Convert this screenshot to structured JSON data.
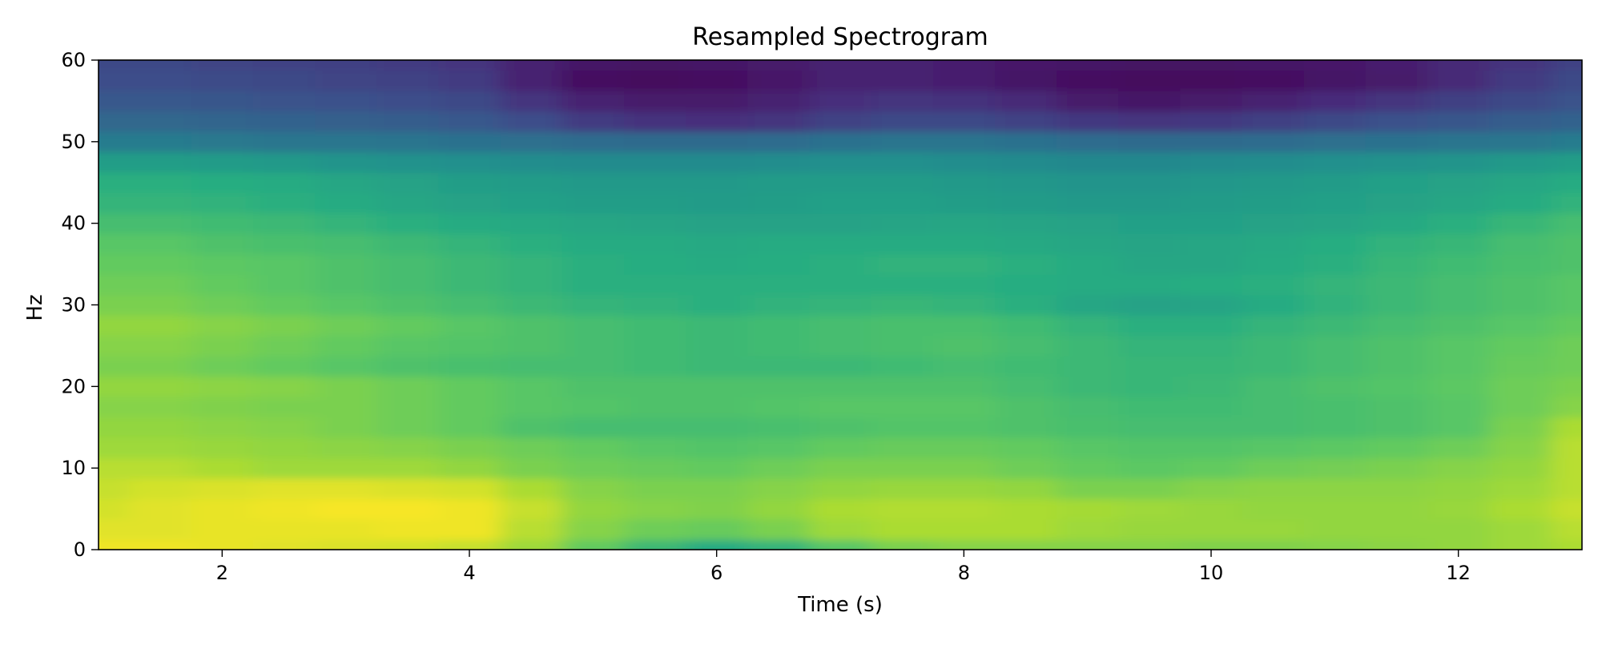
{
  "chart_data": {
    "type": "heatmap",
    "title": "Resampled Spectrogram",
    "xlabel": "Time (s)",
    "ylabel": "Hz",
    "xlim": [
      1.0,
      13.0
    ],
    "ylim": [
      0,
      60
    ],
    "x_ticks": [
      2,
      4,
      6,
      8,
      10,
      12
    ],
    "x_tick_labels": [
      "2",
      "4",
      "6",
      "8",
      "10",
      "12"
    ],
    "y_ticks": [
      0,
      10,
      20,
      30,
      40,
      50,
      60
    ],
    "y_tick_labels": [
      "0",
      "10",
      "20",
      "30",
      "40",
      "50",
      "60"
    ],
    "colormap": "viridis",
    "value_scale": "normalized 0-1 (no colorbar shown)",
    "grid": false,
    "x": [
      1.0,
      1.5,
      2.0,
      2.5,
      3.0,
      3.5,
      4.0,
      4.5,
      5.0,
      5.5,
      6.0,
      6.5,
      7.0,
      7.5,
      8.0,
      8.5,
      9.0,
      9.5,
      10.0,
      10.5,
      11.0,
      11.5,
      12.0,
      12.5,
      13.0
    ],
    "y": [
      0,
      2.5,
      5,
      7.5,
      10,
      12.5,
      15,
      17.5,
      20,
      22.5,
      25,
      27.5,
      30,
      32.5,
      35,
      37.5,
      40,
      42.5,
      45,
      47.5,
      50,
      52.5,
      55,
      57.5,
      60
    ],
    "z": [
      [
        0.98,
        0.98,
        0.97,
        0.96,
        0.95,
        0.94,
        0.92,
        0.86,
        0.76,
        0.68,
        0.62,
        0.66,
        0.74,
        0.8,
        0.82,
        0.82,
        0.82,
        0.82,
        0.81,
        0.81,
        0.82,
        0.83,
        0.84,
        0.86,
        0.88
      ],
      [
        0.96,
        0.96,
        0.97,
        0.97,
        0.97,
        0.98,
        0.98,
        0.9,
        0.82,
        0.78,
        0.77,
        0.8,
        0.86,
        0.88,
        0.88,
        0.88,
        0.86,
        0.85,
        0.85,
        0.85,
        0.84,
        0.84,
        0.84,
        0.86,
        0.9
      ],
      [
        0.94,
        0.96,
        0.97,
        0.98,
        0.99,
        0.99,
        0.98,
        0.92,
        0.84,
        0.82,
        0.81,
        0.84,
        0.88,
        0.89,
        0.89,
        0.88,
        0.87,
        0.86,
        0.85,
        0.84,
        0.84,
        0.84,
        0.85,
        0.88,
        0.92
      ],
      [
        0.92,
        0.94,
        0.95,
        0.96,
        0.96,
        0.95,
        0.94,
        0.88,
        0.82,
        0.8,
        0.8,
        0.82,
        0.84,
        0.85,
        0.85,
        0.84,
        0.8,
        0.8,
        0.82,
        0.83,
        0.83,
        0.83,
        0.84,
        0.86,
        0.9
      ],
      [
        0.9,
        0.9,
        0.88,
        0.86,
        0.86,
        0.86,
        0.84,
        0.8,
        0.78,
        0.77,
        0.76,
        0.78,
        0.8,
        0.8,
        0.8,
        0.78,
        0.76,
        0.75,
        0.76,
        0.78,
        0.79,
        0.8,
        0.82,
        0.84,
        0.9
      ],
      [
        0.86,
        0.86,
        0.85,
        0.84,
        0.83,
        0.82,
        0.8,
        0.78,
        0.76,
        0.74,
        0.73,
        0.74,
        0.76,
        0.77,
        0.77,
        0.76,
        0.74,
        0.73,
        0.73,
        0.74,
        0.75,
        0.76,
        0.78,
        0.82,
        0.9
      ],
      [
        0.84,
        0.84,
        0.83,
        0.82,
        0.8,
        0.78,
        0.76,
        0.72,
        0.7,
        0.7,
        0.7,
        0.71,
        0.72,
        0.73,
        0.73,
        0.72,
        0.71,
        0.7,
        0.7,
        0.7,
        0.71,
        0.72,
        0.74,
        0.8,
        0.88
      ],
      [
        0.82,
        0.82,
        0.81,
        0.8,
        0.8,
        0.78,
        0.76,
        0.74,
        0.73,
        0.72,
        0.72,
        0.73,
        0.74,
        0.74,
        0.74,
        0.72,
        0.7,
        0.69,
        0.69,
        0.7,
        0.71,
        0.72,
        0.74,
        0.78,
        0.82
      ],
      [
        0.84,
        0.84,
        0.83,
        0.82,
        0.8,
        0.78,
        0.76,
        0.74,
        0.72,
        0.72,
        0.72,
        0.72,
        0.72,
        0.72,
        0.72,
        0.7,
        0.68,
        0.67,
        0.68,
        0.7,
        0.72,
        0.73,
        0.75,
        0.78,
        0.8
      ],
      [
        0.8,
        0.8,
        0.78,
        0.76,
        0.74,
        0.72,
        0.71,
        0.7,
        0.7,
        0.69,
        0.68,
        0.68,
        0.68,
        0.69,
        0.7,
        0.69,
        0.68,
        0.67,
        0.67,
        0.68,
        0.7,
        0.72,
        0.74,
        0.77,
        0.78
      ],
      [
        0.82,
        0.82,
        0.8,
        0.78,
        0.76,
        0.74,
        0.73,
        0.72,
        0.7,
        0.69,
        0.68,
        0.69,
        0.7,
        0.71,
        0.72,
        0.7,
        0.68,
        0.66,
        0.66,
        0.68,
        0.7,
        0.72,
        0.74,
        0.76,
        0.78
      ],
      [
        0.84,
        0.84,
        0.82,
        0.8,
        0.78,
        0.76,
        0.74,
        0.72,
        0.7,
        0.69,
        0.68,
        0.69,
        0.7,
        0.71,
        0.71,
        0.69,
        0.66,
        0.64,
        0.64,
        0.66,
        0.68,
        0.7,
        0.72,
        0.74,
        0.76
      ],
      [
        0.8,
        0.8,
        0.78,
        0.76,
        0.74,
        0.72,
        0.7,
        0.68,
        0.66,
        0.65,
        0.64,
        0.65,
        0.66,
        0.67,
        0.66,
        0.64,
        0.6,
        0.58,
        0.59,
        0.62,
        0.65,
        0.68,
        0.7,
        0.72,
        0.74
      ],
      [
        0.78,
        0.78,
        0.76,
        0.74,
        0.72,
        0.7,
        0.68,
        0.66,
        0.64,
        0.64,
        0.64,
        0.64,
        0.64,
        0.64,
        0.64,
        0.63,
        0.62,
        0.62,
        0.63,
        0.64,
        0.66,
        0.68,
        0.7,
        0.72,
        0.74
      ],
      [
        0.76,
        0.76,
        0.75,
        0.74,
        0.72,
        0.7,
        0.68,
        0.66,
        0.64,
        0.63,
        0.62,
        0.63,
        0.64,
        0.65,
        0.65,
        0.64,
        0.62,
        0.6,
        0.6,
        0.62,
        0.64,
        0.67,
        0.69,
        0.71,
        0.72
      ],
      [
        0.74,
        0.74,
        0.72,
        0.71,
        0.7,
        0.68,
        0.66,
        0.64,
        0.62,
        0.62,
        0.61,
        0.62,
        0.62,
        0.62,
        0.62,
        0.61,
        0.6,
        0.59,
        0.6,
        0.61,
        0.63,
        0.65,
        0.67,
        0.7,
        0.72
      ],
      [
        0.7,
        0.7,
        0.69,
        0.68,
        0.66,
        0.64,
        0.62,
        0.61,
        0.6,
        0.59,
        0.58,
        0.58,
        0.58,
        0.59,
        0.6,
        0.59,
        0.58,
        0.57,
        0.57,
        0.58,
        0.59,
        0.61,
        0.64,
        0.67,
        0.7
      ],
      [
        0.66,
        0.66,
        0.65,
        0.64,
        0.62,
        0.6,
        0.58,
        0.57,
        0.56,
        0.56,
        0.55,
        0.56,
        0.57,
        0.57,
        0.56,
        0.55,
        0.54,
        0.54,
        0.55,
        0.56,
        0.57,
        0.58,
        0.6,
        0.62,
        0.65
      ],
      [
        0.64,
        0.64,
        0.63,
        0.62,
        0.6,
        0.58,
        0.56,
        0.55,
        0.54,
        0.54,
        0.54,
        0.55,
        0.55,
        0.55,
        0.54,
        0.53,
        0.52,
        0.52,
        0.53,
        0.54,
        0.55,
        0.57,
        0.58,
        0.6,
        0.62
      ],
      [
        0.56,
        0.56,
        0.55,
        0.54,
        0.52,
        0.51,
        0.5,
        0.49,
        0.48,
        0.48,
        0.48,
        0.49,
        0.5,
        0.5,
        0.49,
        0.48,
        0.47,
        0.47,
        0.48,
        0.49,
        0.5,
        0.51,
        0.52,
        0.54,
        0.56
      ],
      [
        0.42,
        0.42,
        0.41,
        0.4,
        0.4,
        0.39,
        0.38,
        0.37,
        0.36,
        0.35,
        0.35,
        0.36,
        0.38,
        0.39,
        0.39,
        0.38,
        0.36,
        0.35,
        0.35,
        0.36,
        0.37,
        0.38,
        0.39,
        0.4,
        0.42
      ],
      [
        0.34,
        0.34,
        0.33,
        0.32,
        0.31,
        0.3,
        0.28,
        0.24,
        0.18,
        0.15,
        0.14,
        0.16,
        0.2,
        0.22,
        0.22,
        0.2,
        0.17,
        0.16,
        0.17,
        0.19,
        0.22,
        0.25,
        0.27,
        0.3,
        0.32
      ],
      [
        0.28,
        0.28,
        0.27,
        0.26,
        0.25,
        0.24,
        0.22,
        0.16,
        0.1,
        0.08,
        0.08,
        0.1,
        0.14,
        0.16,
        0.15,
        0.12,
        0.08,
        0.06,
        0.08,
        0.1,
        0.13,
        0.16,
        0.19,
        0.22,
        0.26
      ],
      [
        0.24,
        0.24,
        0.23,
        0.22,
        0.21,
        0.2,
        0.18,
        0.1,
        0.04,
        0.03,
        0.04,
        0.07,
        0.1,
        0.1,
        0.09,
        0.06,
        0.04,
        0.03,
        0.03,
        0.04,
        0.06,
        0.08,
        0.12,
        0.18,
        0.22
      ],
      [
        0.22,
        0.22,
        0.21,
        0.2,
        0.19,
        0.18,
        0.16,
        0.1,
        0.06,
        0.05,
        0.06,
        0.08,
        0.1,
        0.1,
        0.09,
        0.07,
        0.06,
        0.05,
        0.05,
        0.06,
        0.07,
        0.09,
        0.12,
        0.16,
        0.2
      ]
    ]
  }
}
